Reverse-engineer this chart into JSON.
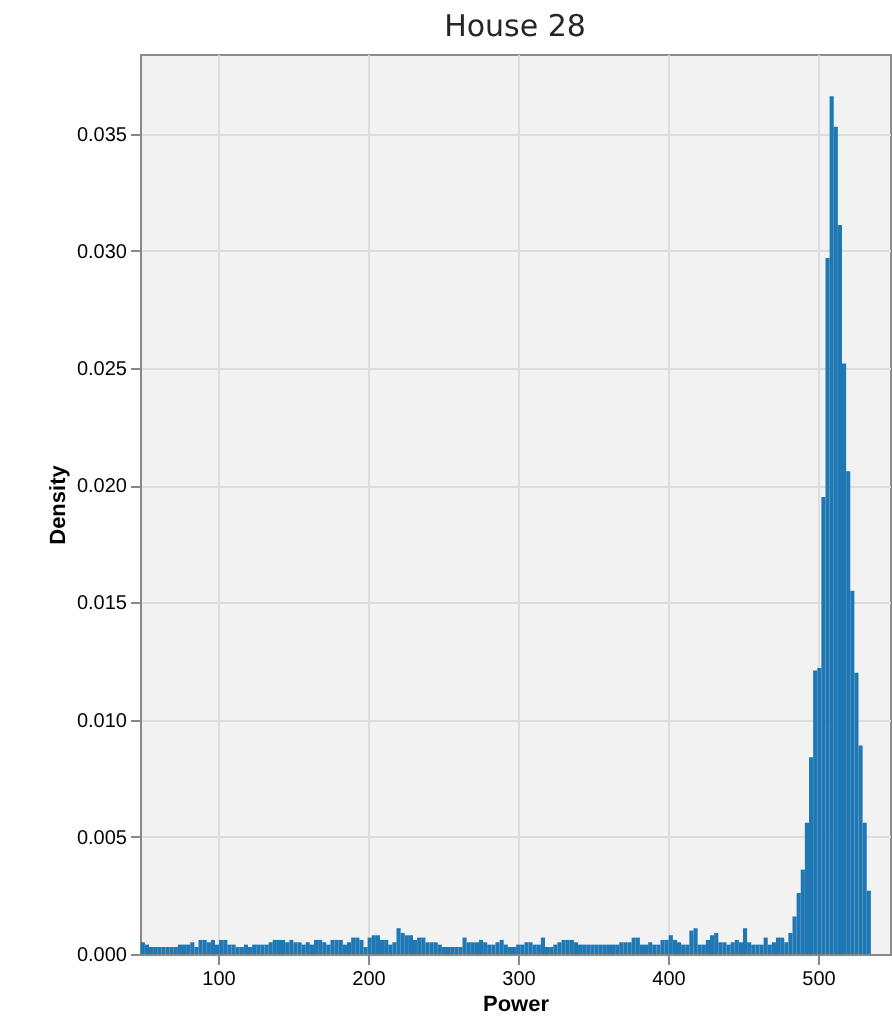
{
  "chart_data": {
    "type": "histogram",
    "title": "House 28",
    "xlabel": "Power",
    "ylabel": "Density",
    "color": "#1f77b4",
    "bins": [
      48.5,
      51.25,
      54,
      56.75,
      59.5,
      62.25,
      65,
      67.75,
      70.5,
      73.25,
      76,
      78.75,
      81.5,
      84.25,
      87,
      89.75,
      92.5,
      95.25,
      98,
      100.75,
      103.5,
      106.25,
      109,
      111.75,
      114.5,
      117.25,
      120,
      122.75,
      125.5,
      128.25,
      131,
      133.75,
      136.5,
      139.25,
      142,
      144.75,
      147.5,
      150.25,
      153,
      155.75,
      158.5,
      161.25,
      164,
      166.75,
      169.5,
      172.25,
      175,
      177.75,
      180.5,
      183.25,
      186,
      188.75,
      191.5,
      194.25,
      197,
      199.75,
      202.5,
      205.25,
      208,
      210.75,
      213.5,
      216.25,
      219,
      221.75,
      224.5,
      227.25,
      230,
      232.75,
      235.5,
      238.25,
      241,
      243.75,
      246.5,
      249.25,
      252,
      254.75,
      257.5,
      260.25,
      263,
      265.75,
      268.5,
      271.25,
      274,
      276.75,
      279.5,
      282.25,
      285,
      287.75,
      290.5,
      293.25,
      296,
      298.75,
      301.5,
      304.25,
      307,
      309.75,
      312.5,
      315.25,
      318,
      320.75,
      323.5,
      326.25,
      329,
      331.75,
      334.5,
      337.25,
      340,
      342.75,
      345.5,
      348.25,
      351,
      353.75,
      356.5,
      359.25,
      362,
      364.75,
      367.5,
      370.25,
      373,
      375.75,
      378.5,
      381.25,
      384,
      386.75,
      389.5,
      392.25,
      395,
      397.75,
      400.5,
      403.25,
      406,
      408.75,
      411.5,
      414.25,
      417,
      419.75,
      422.5,
      425.25,
      428,
      430.75,
      433.5,
      436.25,
      439,
      441.75,
      444.5,
      447.25,
      450,
      452.75,
      455.5,
      458.25,
      461,
      463.75,
      466.5,
      469.25,
      472,
      474.75,
      477.5,
      480.25,
      483,
      485.75,
      488.5,
      491.25,
      494,
      496.75,
      499.5,
      502.25,
      505,
      507.75,
      510.5,
      513.25,
      516,
      518.75,
      521.5,
      524.25,
      527,
      529.75,
      532.5,
      535.25
    ],
    "values": [
      0.0005,
      0.0004,
      0.0003,
      0.0003,
      0.0003,
      0.0003,
      0.0003,
      0.0003,
      0.0003,
      0.0004,
      0.0004,
      0.0004,
      0.0005,
      0.0003,
      0.0006,
      0.0006,
      0.0005,
      0.0006,
      0.0004,
      0.0006,
      0.0006,
      0.0004,
      0.0004,
      0.0003,
      0.0003,
      0.0004,
      0.0003,
      0.0004,
      0.0004,
      0.0004,
      0.0004,
      0.0005,
      0.0006,
      0.0006,
      0.0006,
      0.0005,
      0.0006,
      0.0005,
      0.0005,
      0.0004,
      0.0005,
      0.0004,
      0.0006,
      0.0006,
      0.0005,
      0.0004,
      0.0006,
      0.0006,
      0.0006,
      0.0004,
      0.0005,
      0.0007,
      0.0007,
      0.0006,
      0.0003,
      0.0007,
      0.0008,
      0.0008,
      0.0006,
      0.0006,
      0.0004,
      0.0005,
      0.0011,
      0.0009,
      0.0008,
      0.0008,
      0.0006,
      0.0007,
      0.0007,
      0.0005,
      0.0005,
      0.0005,
      0.0004,
      0.0003,
      0.0003,
      0.0003,
      0.0003,
      0.0003,
      0.0007,
      0.0005,
      0.0005,
      0.0005,
      0.0006,
      0.0005,
      0.0004,
      0.0004,
      0.0005,
      0.0006,
      0.0004,
      0.0003,
      0.0003,
      0.0004,
      0.0004,
      0.0005,
      0.0005,
      0.0004,
      0.0004,
      0.0007,
      0.0003,
      0.0003,
      0.0004,
      0.0005,
      0.0006,
      0.0006,
      0.0006,
      0.0005,
      0.0004,
      0.0004,
      0.0004,
      0.0004,
      0.0004,
      0.0004,
      0.0004,
      0.0004,
      0.0004,
      0.0004,
      0.0005,
      0.0005,
      0.0005,
      0.0007,
      0.0007,
      0.0004,
      0.0004,
      0.0005,
      0.0004,
      0.0004,
      0.0006,
      0.0006,
      0.0008,
      0.0006,
      0.0005,
      0.0004,
      0.0004,
      0.001,
      0.0011,
      0.0004,
      0.0004,
      0.0006,
      0.0008,
      0.0009,
      0.0005,
      0.0005,
      0.0004,
      0.0005,
      0.0006,
      0.0005,
      0.0011,
      0.0005,
      0.0004,
      0.0004,
      0.0004,
      0.0007,
      0.0004,
      0.0005,
      0.0007,
      0.0007,
      0.0005,
      0.0009,
      0.0016,
      0.0026,
      0.0036,
      0.0056,
      0.0084,
      0.0121,
      0.0122,
      0.0195,
      0.0297,
      0.0366,
      0.0353,
      0.0311,
      0.0252,
      0.0206,
      0.0155,
      0.012,
      0.0089,
      0.0056,
      0.0027
    ],
    "xlim": [
      48,
      548
    ],
    "ylim": [
      0,
      0.0384
    ],
    "xticks": [
      100,
      200,
      300,
      400,
      500
    ],
    "yticks": [
      {
        "value": 0,
        "label": "0.000"
      },
      0.005,
      {
        "value": 0.01,
        "label": "0.010"
      },
      0.015,
      {
        "value": 0.02,
        "label": "0.020"
      },
      0.025,
      {
        "value": 0.03,
        "label": "0.030"
      },
      0.035
    ],
    "grid": true
  }
}
